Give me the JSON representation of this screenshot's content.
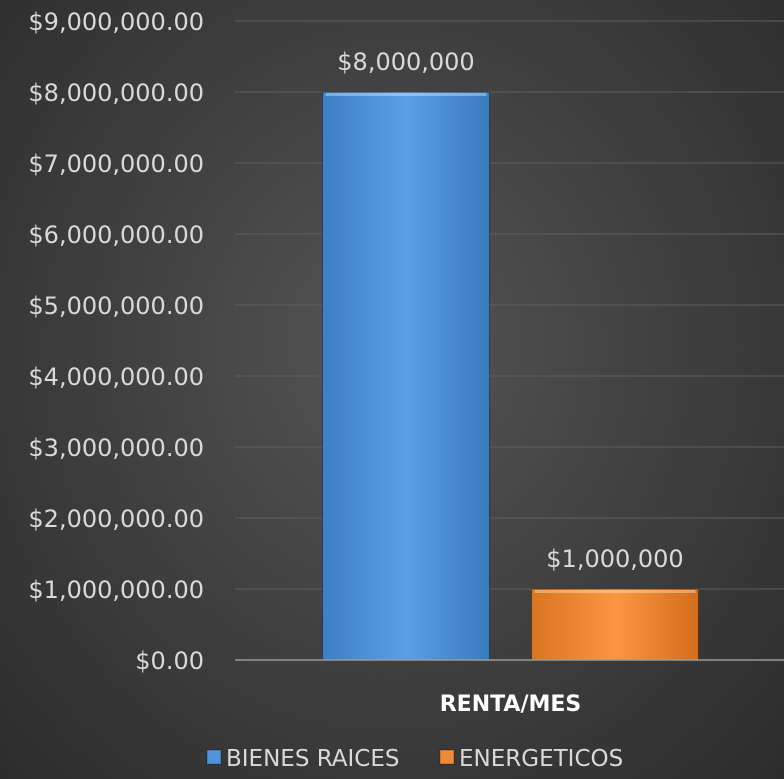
{
  "chart_data": {
    "type": "bar",
    "categories": [
      "RENTA/MES"
    ],
    "series": [
      {
        "name": "BIENES RAICES",
        "values": [
          8000000
        ],
        "color": "#4f94dc",
        "data_label": "$8,000,000"
      },
      {
        "name": "ENERGETICOS",
        "values": [
          1000000
        ],
        "color": "#f08a35",
        "data_label": "$1,000,000"
      }
    ],
    "ylim": [
      0,
      9000000
    ],
    "y_ticks": [
      "$0.00",
      "$1,000,000.00",
      "$2,000,000.00",
      "$3,000,000.00",
      "$4,000,000.00",
      "$5,000,000.00",
      "$6,000,000.00",
      "$7,000,000.00",
      "$8,000,000.00",
      "$9,000,000.00"
    ],
    "title": "",
    "xlabel": "",
    "ylabel": "",
    "grid": true,
    "legend_position": "bottom"
  }
}
